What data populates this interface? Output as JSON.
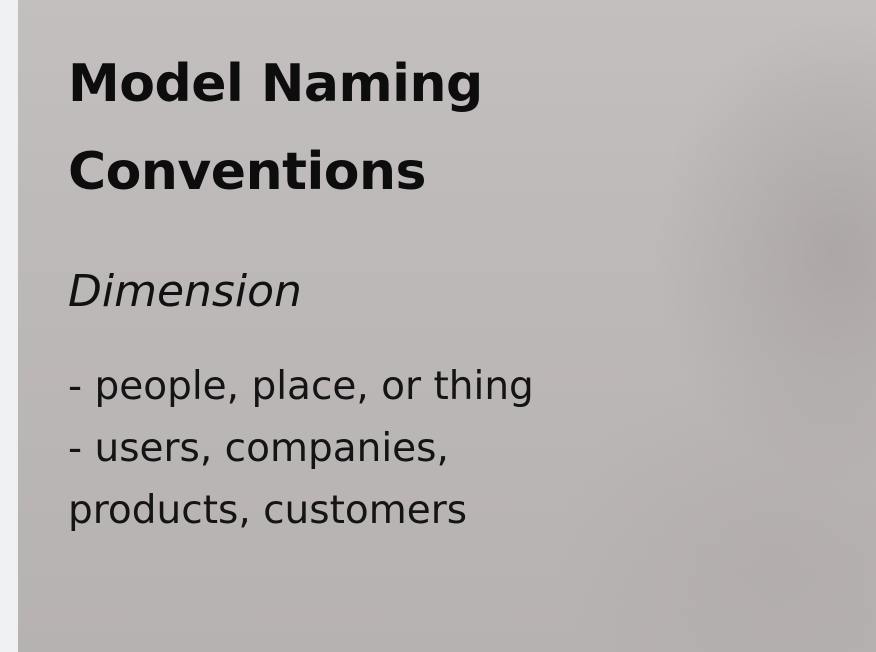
{
  "slide": {
    "title_lines": [
      "Model Naming",
      "Conventions"
    ],
    "subtitle": "Dimension",
    "body_lines": [
      "- people, place, or thing",
      "- users, companies,",
      "products, customers"
    ]
  },
  "colors": {
    "page_background": "#eef0f2",
    "slide_background": "#bdb8b8",
    "text": "#0d0d0d"
  }
}
